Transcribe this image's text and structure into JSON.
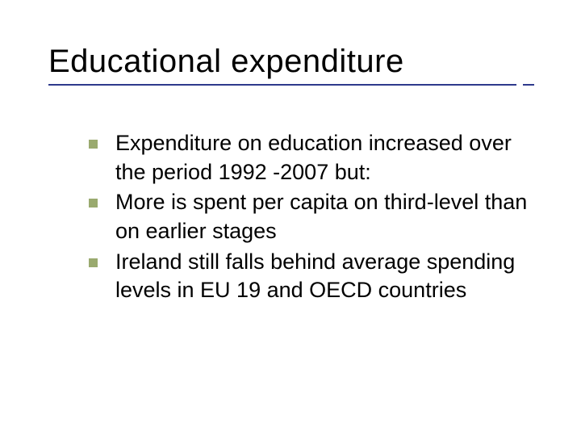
{
  "slide": {
    "title": "Educational expenditure",
    "title_color": "#000000",
    "title_fontsize": 40,
    "underline_color": "#2e3a8c",
    "bullets": [
      {
        "text": "Expenditure on education increased over the period 1992 -2007 but:"
      },
      {
        "text": "More is spent per capita on third-level than on earlier stages"
      },
      {
        "text": "Ireland still falls behind average spending levels in EU 19 and OECD countries"
      }
    ],
    "bullet_marker_color": "#9aaa6f",
    "bullet_fontsize": 27,
    "background_color": "#ffffff"
  }
}
